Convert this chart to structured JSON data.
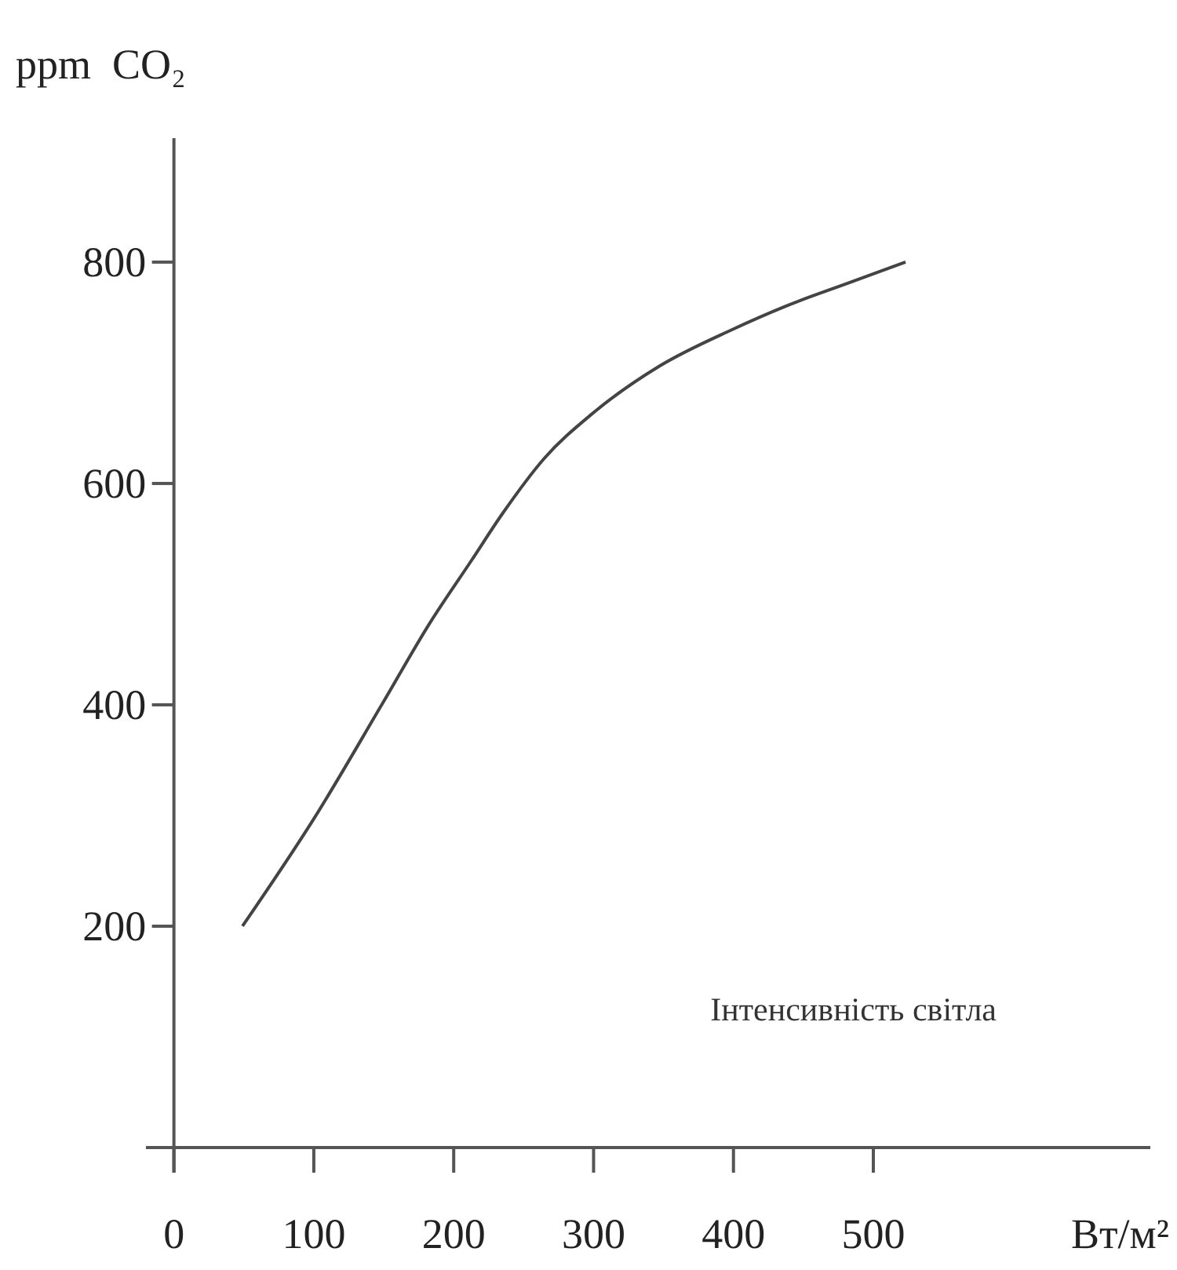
{
  "chart_data": {
    "type": "line",
    "ylabel": "ppm  CO₂",
    "xlabel": "Вт/м²",
    "annotations": [
      "Інтенсивність світла"
    ],
    "x": [
      49,
      101,
      149,
      183,
      213,
      235,
      265,
      299,
      347,
      399,
      437,
      482,
      523
    ],
    "series": [
      {
        "color": "#444444",
        "values": [
          200,
          299,
          401,
          474,
          531,
          573,
          623,
          663,
          706,
          739,
          760,
          781,
          800
        ]
      }
    ],
    "xlim": [
      -20,
      698
    ],
    "ylim": [
      0,
      912
    ],
    "xticks": [
      0,
      100,
      200,
      300,
      400,
      500
    ],
    "yticks": [
      200,
      400,
      600,
      800
    ],
    "grid": false,
    "marker": "none",
    "line_style": "solid"
  }
}
